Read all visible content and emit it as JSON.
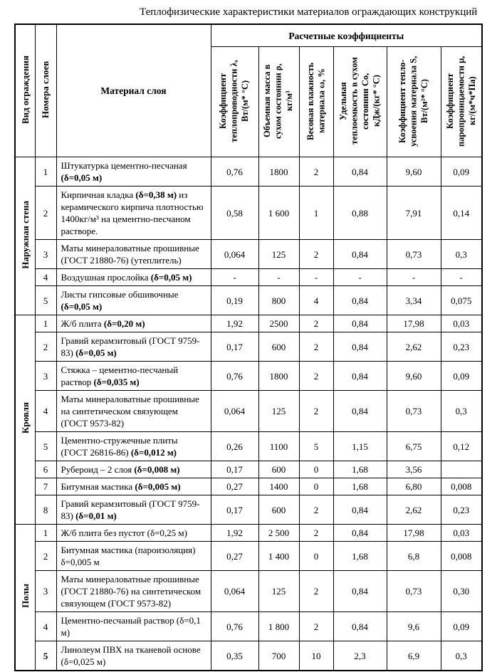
{
  "title": "Теплофизические характеристики материалов ограждающих конструкций",
  "table": {
    "corner_headers": [
      "Вид ограждения",
      "Номера слоев",
      "Материал слоя"
    ],
    "group_header": "Расчетные коэффициенты",
    "value_columns": [
      "Коэффициент\nтеплопроводности λ,\nВт/(м* °С)",
      "Объемная масса в\nсухом состоянии ρ,\nкг/м³",
      "Весовая влажность\nматериала ω, %",
      "Удельная\nтеплоемкость в сухом\nсостоянии Со,\nкДж/(кг* °С)",
      "Коэффициент тепло-\nусвоения материала S,\nВт/(м²* °С)",
      "Коэффициент\nпаропроницаемости μ,\nкг/(м*ч*Па)"
    ],
    "sections": [
      {
        "label": "Наружная стена",
        "rows": [
          {
            "num": "1",
            "material": [
              {
                "text": "Штукатурка цементно-песчаная ",
                "bold": false
              },
              {
                "text": "(δ=0,05 м)",
                "bold": true
              }
            ],
            "values": [
              "0,76",
              "1800",
              "2",
              "0,84",
              "9,60",
              "0,09"
            ]
          },
          {
            "num": "2",
            "material": [
              {
                "text": "Кирпичная кладка ",
                "bold": false
              },
              {
                "text": "(δ=0,38 м)",
                "bold": true
              },
              {
                "text": " из керамического кирпича плотностью 1400кг/м³  на цементно-песчаном растворе.",
                "bold": false
              }
            ],
            "values": [
              "0,58",
              "1 600",
              "1",
              "0,88",
              "7,91",
              "0,14"
            ]
          },
          {
            "num": "3",
            "material": [
              {
                "text": "Маты минераловатные прошивные (ГОСТ 21880-76) (утеплитель)",
                "bold": false
              }
            ],
            "values": [
              "0,064",
              "125",
              "2",
              "0,84",
              "0,73",
              "0,3"
            ]
          },
          {
            "num": "4",
            "material": [
              {
                "text": "Воздушная прослойка ",
                "bold": false
              },
              {
                "text": "(δ=0,05 м)",
                "bold": true
              }
            ],
            "values": [
              "-",
              "-",
              "-",
              "-",
              "-",
              "-"
            ]
          },
          {
            "num": "5",
            "material": [
              {
                "text": "Листы гипсовые обшивочные ",
                "bold": false
              },
              {
                "text": "(δ=0,05 м)",
                "bold": true
              }
            ],
            "values": [
              "0,19",
              "800",
              "4",
              "0,84",
              "3,34",
              "0,075"
            ]
          }
        ]
      },
      {
        "label": "Кровля",
        "rows": [
          {
            "num": "1",
            "material": [
              {
                "text": "Ж/б плита ",
                "bold": false
              },
              {
                "text": "(δ=0,20 м)",
                "bold": true
              }
            ],
            "values": [
              "1,92",
              "2500",
              "2",
              "0,84",
              "17,98",
              "0,03"
            ]
          },
          {
            "num": "2",
            "material": [
              {
                "text": "Гравий керамзитовый (ГОСТ 9759-83) ",
                "bold": false
              },
              {
                "text": "(δ=0,05 м)",
                "bold": true
              }
            ],
            "values": [
              "0,17",
              "600",
              "2",
              "0,84",
              "2,62",
              "0,23"
            ]
          },
          {
            "num": "3",
            "material": [
              {
                "text": "Стяжка – цементно-песчаный раствор ",
                "bold": false
              },
              {
                "text": "(δ=0,035 м)",
                "bold": true
              }
            ],
            "values": [
              "0,76",
              "1800",
              "2",
              "0,84",
              "9,60",
              "0,09"
            ]
          },
          {
            "num": "4",
            "material": [
              {
                "text": "Маты минераловатные прошивные на синтетическом связующем (ГОСТ 9573-82)",
                "bold": false
              }
            ],
            "values": [
              "0,064",
              "125",
              "2",
              "0,84",
              "0,73",
              "0,3"
            ]
          },
          {
            "num": "5",
            "material": [
              {
                "text": "Цементно-стружечные плиты (ГОСТ 26816-86) ",
                "bold": false
              },
              {
                "text": "(δ=0,012 м)",
                "bold": true
              }
            ],
            "values": [
              "0,26",
              "1100",
              "5",
              "1,15",
              "6,75",
              "0,12"
            ]
          },
          {
            "num": "6",
            "material": [
              {
                "text": "Рубероид – 2 слоя ",
                "bold": false
              },
              {
                "text": "(δ=0,008 м)",
                "bold": true
              }
            ],
            "values": [
              "0,17",
              "600",
              "0",
              "1,68",
              "3,56",
              ""
            ]
          },
          {
            "num": "7",
            "material": [
              {
                "text": "Битумная мастика ",
                "bold": false
              },
              {
                "text": "(δ=0,005 м)",
                "bold": true
              }
            ],
            "values": [
              "0,27",
              "1400",
              "0",
              "1,68",
              "6,80",
              "0,008"
            ]
          },
          {
            "num": "8",
            "material": [
              {
                "text": "Гравий керамзитовый (ГОСТ 9759-83) ",
                "bold": false
              },
              {
                "text": "(δ=0,01 м)",
                "bold": true
              }
            ],
            "values": [
              "0,17",
              "600",
              "2",
              "0,84",
              "2,62",
              "0,23"
            ]
          }
        ]
      },
      {
        "label": "Полы",
        "rows": [
          {
            "num": "1",
            "material": [
              {
                "text": "Ж/б плита без пустот (δ=0,25 м)",
                "bold": false
              }
            ],
            "values": [
              "1,92",
              "2 500",
              "2",
              "0,84",
              "17,98",
              "0,03"
            ]
          },
          {
            "num": "2",
            "material": [
              {
                "text": "Битумная мастика (пароизоляция) δ=0,005 м",
                "bold": false
              }
            ],
            "values": [
              "0,27",
              "1 400",
              "0",
              "1,68",
              "6,8",
              "0,008"
            ]
          },
          {
            "num": "3",
            "material": [
              {
                "text": "Маты минераловатные прошивные (ГОСТ 21880-76) на синтетическом связующем (ГОСТ 9573-82)",
                "bold": false
              }
            ],
            "values": [
              "0,064",
              "125",
              "2",
              "0,84",
              "0,73",
              "0,30"
            ]
          },
          {
            "num": "4",
            "material": [
              {
                "text": "Цементно-песчаный раствор (δ=0,1 м)",
                "bold": false
              }
            ],
            "values": [
              "0,76",
              "1 800",
              "2",
              "0,84",
              "9,6",
              "0,09"
            ]
          },
          {
            "num": "5",
            "num_bold": true,
            "material": [
              {
                "text": "Линолеум ПВХ на тканевой основе  (δ=0,025 м)",
                "bold": false
              }
            ],
            "values": [
              "0,35",
              "700",
              "10",
              "2,3",
              "6,9",
              "0,3"
            ]
          }
        ]
      }
    ]
  }
}
